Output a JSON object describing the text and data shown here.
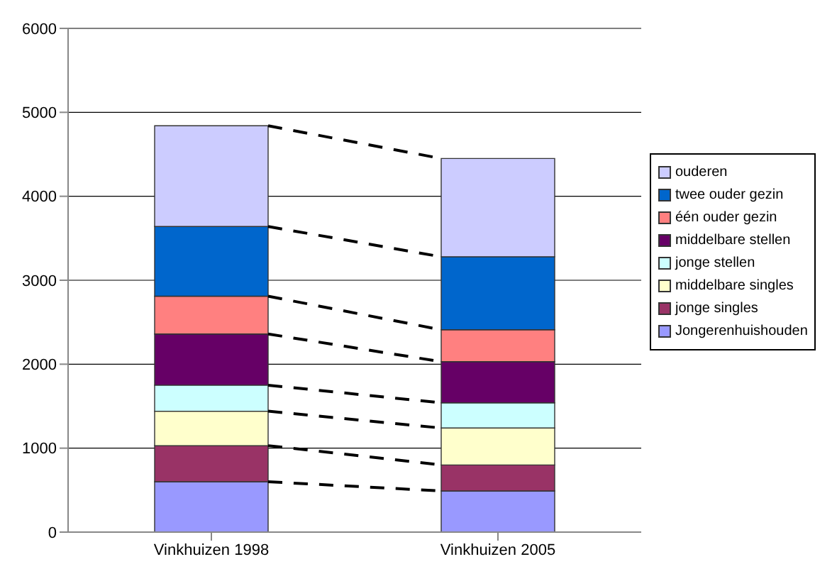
{
  "chart_data": {
    "type": "bar",
    "stacked": true,
    "categories": [
      "Vinkhuizen 1998",
      "Vinkhuizen 2005"
    ],
    "series": [
      {
        "name": "Jongerenhuishouden",
        "color": "#9999ff",
        "values": [
          600,
          490
        ]
      },
      {
        "name": "jonge singles",
        "color": "#993366",
        "values": [
          430,
          310
        ]
      },
      {
        "name": "middelbare singles",
        "color": "#ffffcc",
        "values": [
          410,
          440
        ]
      },
      {
        "name": "jonge stellen",
        "color": "#ccffff",
        "values": [
          310,
          300
        ]
      },
      {
        "name": "middelbare stellen",
        "color": "#660066",
        "values": [
          610,
          490
        ]
      },
      {
        "name": "één ouder gezin",
        "color": "#ff8080",
        "values": [
          450,
          380
        ]
      },
      {
        "name": "twee ouder gezin",
        "color": "#0066cc",
        "values": [
          830,
          870
        ]
      },
      {
        "name": "ouderen",
        "color": "#ccccff",
        "values": [
          1200,
          1170
        ]
      }
    ],
    "ylim": [
      0,
      6000
    ],
    "yticks": [
      0,
      1000,
      2000,
      3000,
      4000,
      5000,
      6000
    ],
    "grid": "y",
    "legend": "right"
  }
}
